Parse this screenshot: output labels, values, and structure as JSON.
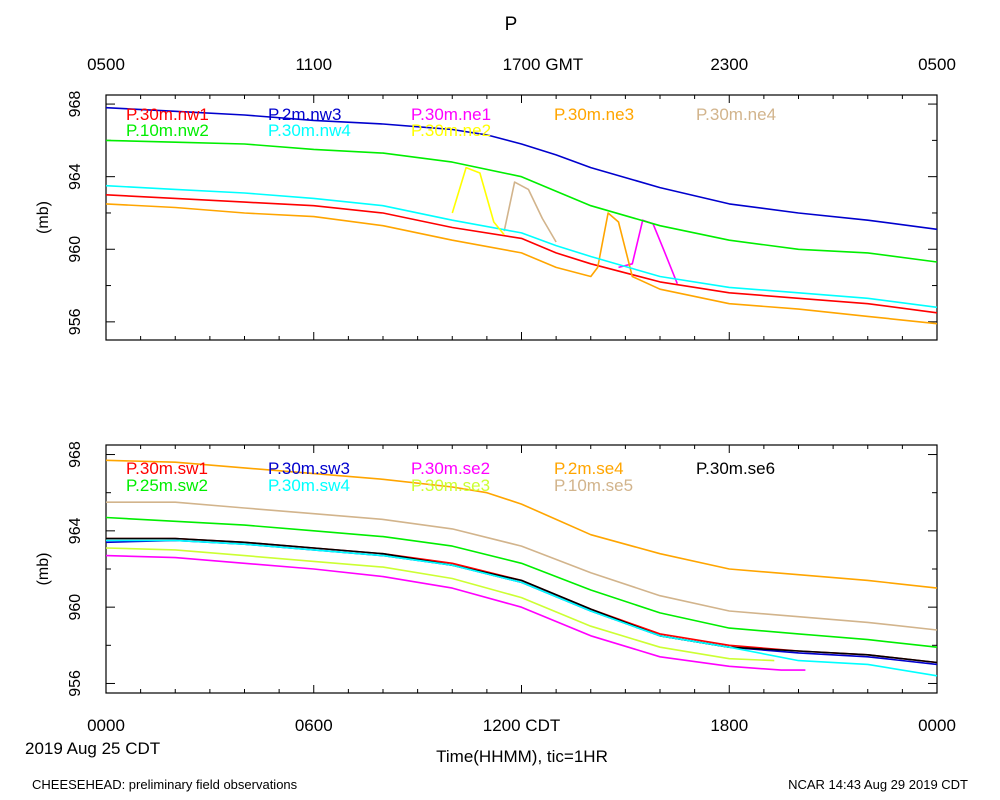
{
  "page": {
    "title": "P",
    "top_axis_label": "GMT",
    "bottom_axis_label": "CDT",
    "xlabel": "Time(HHMM), tic=1HR",
    "date_label": "2019 Aug 25 CDT",
    "footer_left": "CHEESEHEAD: preliminary field observations",
    "footer_right": "NCAR 14:43 Aug 29 2019 CDT"
  },
  "chart_data": [
    {
      "type": "line",
      "panel": "top",
      "ylabel": "(mb)",
      "ylim": [
        955,
        968.5
      ],
      "yticks": [
        956,
        960,
        964,
        968
      ],
      "x_unit": "hours since 0000 CDT",
      "xlim": [
        0,
        24
      ],
      "top_ticks": [
        "0500",
        "1100",
        "1700",
        "2300",
        "0500"
      ],
      "series": [
        {
          "name": "P.30m.nw1",
          "color": "#ff0000",
          "x": [
            0,
            2,
            4,
            6,
            8,
            10,
            12,
            13,
            14,
            16,
            18,
            20,
            22,
            24
          ],
          "y": [
            963.0,
            962.8,
            962.6,
            962.4,
            962.0,
            961.2,
            960.6,
            959.8,
            959.2,
            958.2,
            957.6,
            957.3,
            957.0,
            956.5
          ]
        },
        {
          "name": "P.2m.nw3",
          "color": "#0000cd",
          "x": [
            0,
            2,
            4,
            6,
            8,
            10,
            11,
            12,
            13,
            14,
            16,
            18,
            20,
            22,
            24
          ],
          "y": [
            967.8,
            967.6,
            967.4,
            967.1,
            966.9,
            966.6,
            966.3,
            965.8,
            965.2,
            964.5,
            963.4,
            962.5,
            962.0,
            961.6,
            961.1
          ]
        },
        {
          "name": "P.30m.ne1",
          "color": "#ff00ff",
          "x": [
            14.8,
            15.2,
            15.5,
            15.8,
            16.1,
            16.5
          ],
          "y": [
            959.0,
            959.2,
            961.6,
            961.4,
            960.0,
            958.1
          ]
        },
        {
          "name": "P.30m.ne3",
          "color": "#ffa500",
          "x": [
            0,
            2,
            4,
            6,
            8,
            10,
            12,
            13,
            14,
            14.2,
            14.5,
            14.8,
            15.2,
            16,
            18,
            20,
            22,
            24
          ],
          "y": [
            962.5,
            962.3,
            962.0,
            961.8,
            961.3,
            960.5,
            959.8,
            959.0,
            958.5,
            959.0,
            962.0,
            961.5,
            958.5,
            957.8,
            957.0,
            956.7,
            956.3,
            955.9
          ]
        },
        {
          "name": "P.30m.ne4",
          "color": "#d2b48c",
          "x": [
            11.5,
            11.8,
            12.2,
            12.6,
            13.0
          ],
          "y": [
            961.0,
            963.7,
            963.3,
            961.7,
            960.4
          ]
        },
        {
          "name": "P.10m.nw2",
          "color": "#00ee00",
          "x": [
            0,
            2,
            4,
            6,
            8,
            10,
            12,
            13,
            14,
            16,
            18,
            20,
            22,
            24
          ],
          "y": [
            966.0,
            965.9,
            965.8,
            965.5,
            965.3,
            964.8,
            964.0,
            963.2,
            962.4,
            961.3,
            960.5,
            960.0,
            959.8,
            959.3
          ]
        },
        {
          "name": "P.30m.nw4",
          "color": "#00ffff",
          "x": [
            0,
            2,
            4,
            6,
            8,
            10,
            12,
            13,
            14,
            16,
            18,
            20,
            22,
            24
          ],
          "y": [
            963.5,
            963.3,
            963.1,
            962.8,
            962.4,
            961.6,
            960.9,
            960.2,
            959.6,
            958.5,
            957.9,
            957.6,
            957.3,
            956.8
          ]
        },
        {
          "name": "P.30m.ne2",
          "color": "#ffff00",
          "x": [
            10,
            10.4,
            10.8,
            11.2,
            11.5
          ],
          "y": [
            962.0,
            964.5,
            964.2,
            961.5,
            960.8
          ]
        }
      ]
    },
    {
      "type": "line",
      "panel": "bottom",
      "ylabel": "(mb)",
      "ylim": [
        955.5,
        968.5
      ],
      "yticks": [
        956,
        960,
        964,
        968
      ],
      "x_unit": "hours since 0000 CDT",
      "xlim": [
        0,
        24
      ],
      "bottom_ticks": [
        "0000",
        "0600",
        "1200 CDT",
        "1800",
        "0000"
      ],
      "series": [
        {
          "name": "P.30m.sw1",
          "color": "#ff0000",
          "x": [
            0,
            2,
            4,
            6,
            8,
            10,
            12,
            14,
            16,
            18,
            20,
            22,
            24
          ],
          "y": [
            963.6,
            963.6,
            963.4,
            963.1,
            962.8,
            962.3,
            961.4,
            959.9,
            958.6,
            958.0,
            957.7,
            957.5,
            957.1
          ]
        },
        {
          "name": "P.30m.sw3",
          "color": "#0000cd",
          "x": [
            0,
            2,
            4,
            6,
            8,
            10,
            12,
            14,
            16,
            18,
            20,
            22,
            24
          ],
          "y": [
            963.4,
            963.5,
            963.3,
            963.0,
            962.7,
            962.2,
            961.3,
            959.8,
            958.5,
            957.9,
            957.6,
            957.4,
            957.0
          ]
        },
        {
          "name": "P.30m.se2",
          "color": "#ff00ff",
          "x": [
            0,
            2,
            4,
            6,
            8,
            10,
            12,
            14,
            16,
            18,
            19.5,
            20.2
          ],
          "y": [
            962.7,
            962.6,
            962.3,
            962.0,
            961.6,
            961.0,
            960.0,
            958.5,
            957.4,
            956.9,
            956.7,
            956.7
          ]
        },
        {
          "name": "P.2m.se4",
          "color": "#ffa500",
          "x": [
            0,
            2,
            4,
            6,
            8,
            10,
            11,
            12,
            13,
            14,
            16,
            18,
            20,
            22,
            24
          ],
          "y": [
            967.7,
            967.6,
            967.3,
            967.0,
            966.7,
            966.3,
            966.0,
            965.4,
            964.6,
            963.8,
            962.8,
            962.0,
            961.7,
            961.4,
            961.0
          ]
        },
        {
          "name": "P.30m.se6",
          "color": "#000000",
          "x": [
            0,
            2,
            4,
            6,
            8,
            10,
            12,
            14,
            16,
            18,
            20,
            22,
            24
          ],
          "y": [
            963.6,
            963.6,
            963.4,
            963.1,
            962.8,
            962.2,
            961.4,
            959.9,
            958.5,
            957.9,
            957.7,
            957.5,
            957.1
          ]
        },
        {
          "name": "P.25m.sw2",
          "color": "#00ee00",
          "x": [
            0,
            2,
            4,
            6,
            8,
            10,
            12,
            14,
            16,
            18,
            20,
            22,
            24
          ],
          "y": [
            964.7,
            964.5,
            964.3,
            964.0,
            963.7,
            963.2,
            962.3,
            960.9,
            959.7,
            958.9,
            958.6,
            958.3,
            957.9
          ]
        },
        {
          "name": "P.30m.sw4",
          "color": "#00ffff",
          "x": [
            0,
            2,
            4,
            6,
            8,
            10,
            12,
            14,
            16,
            18,
            20,
            22,
            24
          ],
          "y": [
            963.5,
            963.5,
            963.3,
            963.0,
            962.7,
            962.2,
            961.3,
            959.8,
            958.5,
            957.9,
            957.2,
            957.0,
            956.4
          ]
        },
        {
          "name": "P.30m.se3",
          "color": "#ccff33",
          "x": [
            0,
            2,
            4,
            6,
            8,
            10,
            12,
            14,
            16,
            18,
            19.3
          ],
          "y": [
            963.1,
            963.0,
            962.7,
            962.4,
            962.1,
            961.5,
            960.5,
            959.0,
            957.9,
            957.3,
            957.2
          ]
        },
        {
          "name": "P.10m.se5",
          "color": "#d2b48c",
          "x": [
            0,
            2,
            4,
            6,
            8,
            10,
            12,
            14,
            16,
            18,
            20,
            22,
            24
          ],
          "y": [
            965.5,
            965.5,
            965.2,
            964.9,
            964.6,
            964.1,
            963.2,
            961.8,
            960.6,
            959.8,
            959.5,
            959.2,
            958.8
          ]
        }
      ]
    }
  ]
}
